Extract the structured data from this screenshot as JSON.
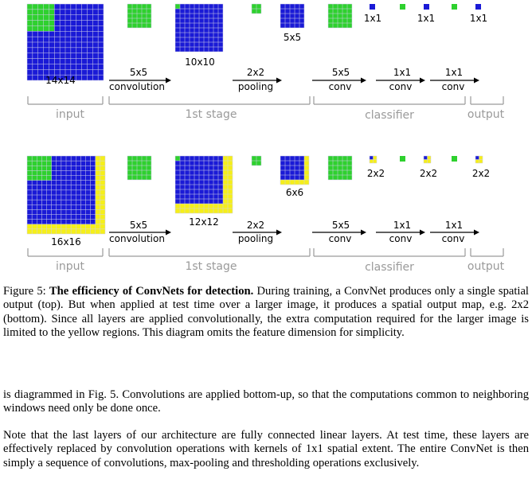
{
  "figure": {
    "top": {
      "input_size": "14x14",
      "stage1_size": "10x10",
      "pool_size": "5x5",
      "out_labels": [
        "1x1",
        "1x1",
        "1x1"
      ],
      "op_convolution": [
        "5x5",
        "convolution"
      ],
      "op_pooling": [
        "2x2",
        "pooling"
      ],
      "op_conv1": [
        "5x5",
        "conv"
      ],
      "op_conv2": [
        "1x1",
        "conv"
      ],
      "op_conv3": [
        "1x1",
        "conv"
      ]
    },
    "bottom": {
      "input_size": "16x16",
      "stage1_size": "12x12",
      "pool_size": "6x6",
      "out_labels": [
        "2x2",
        "2x2",
        "2x2"
      ],
      "op_convolution": [
        "5x5",
        "convolution"
      ],
      "op_pooling": [
        "2x2",
        "pooling"
      ],
      "op_conv1": [
        "5x5",
        "conv"
      ],
      "op_conv2": [
        "1x1",
        "conv"
      ],
      "op_conv3": [
        "1x1",
        "conv"
      ]
    },
    "section_labels": [
      "input",
      "1st stage",
      "classifier",
      "output"
    ],
    "colors": {
      "blue": "#1a1ad6",
      "green": "#2ed12e",
      "yellow": "#f5ef1a",
      "grid_line": "#cfcfe8",
      "bracket": "#9a9a9a"
    }
  },
  "caption": {
    "prefix": "Figure 5: ",
    "bold": "The efficiency of ConvNets for detection.",
    "rest": " During training, a ConvNet produces only a single spatial output (top). But when applied at test time over a larger image, it produces a spatial output map, e.g. 2x2 (bottom). Since all layers are applied convolutionally, the extra computation required for the larger image is limited to the yellow regions. This diagram omits the feature dimension for simplicity."
  },
  "paragraphs": [
    "is diagrammed in Fig. 5. Convolutions are applied bottom-up, so that the computations common to neighboring windows need only be done once.",
    "Note that the last layers of our architecture are fully connected linear layers. At test time, these layers are effectively replaced by convolution operations with kernels of 1x1 spatial extent. The entire ConvNet is then simply a sequence of convolutions, max-pooling and thresholding operations exclusively."
  ]
}
